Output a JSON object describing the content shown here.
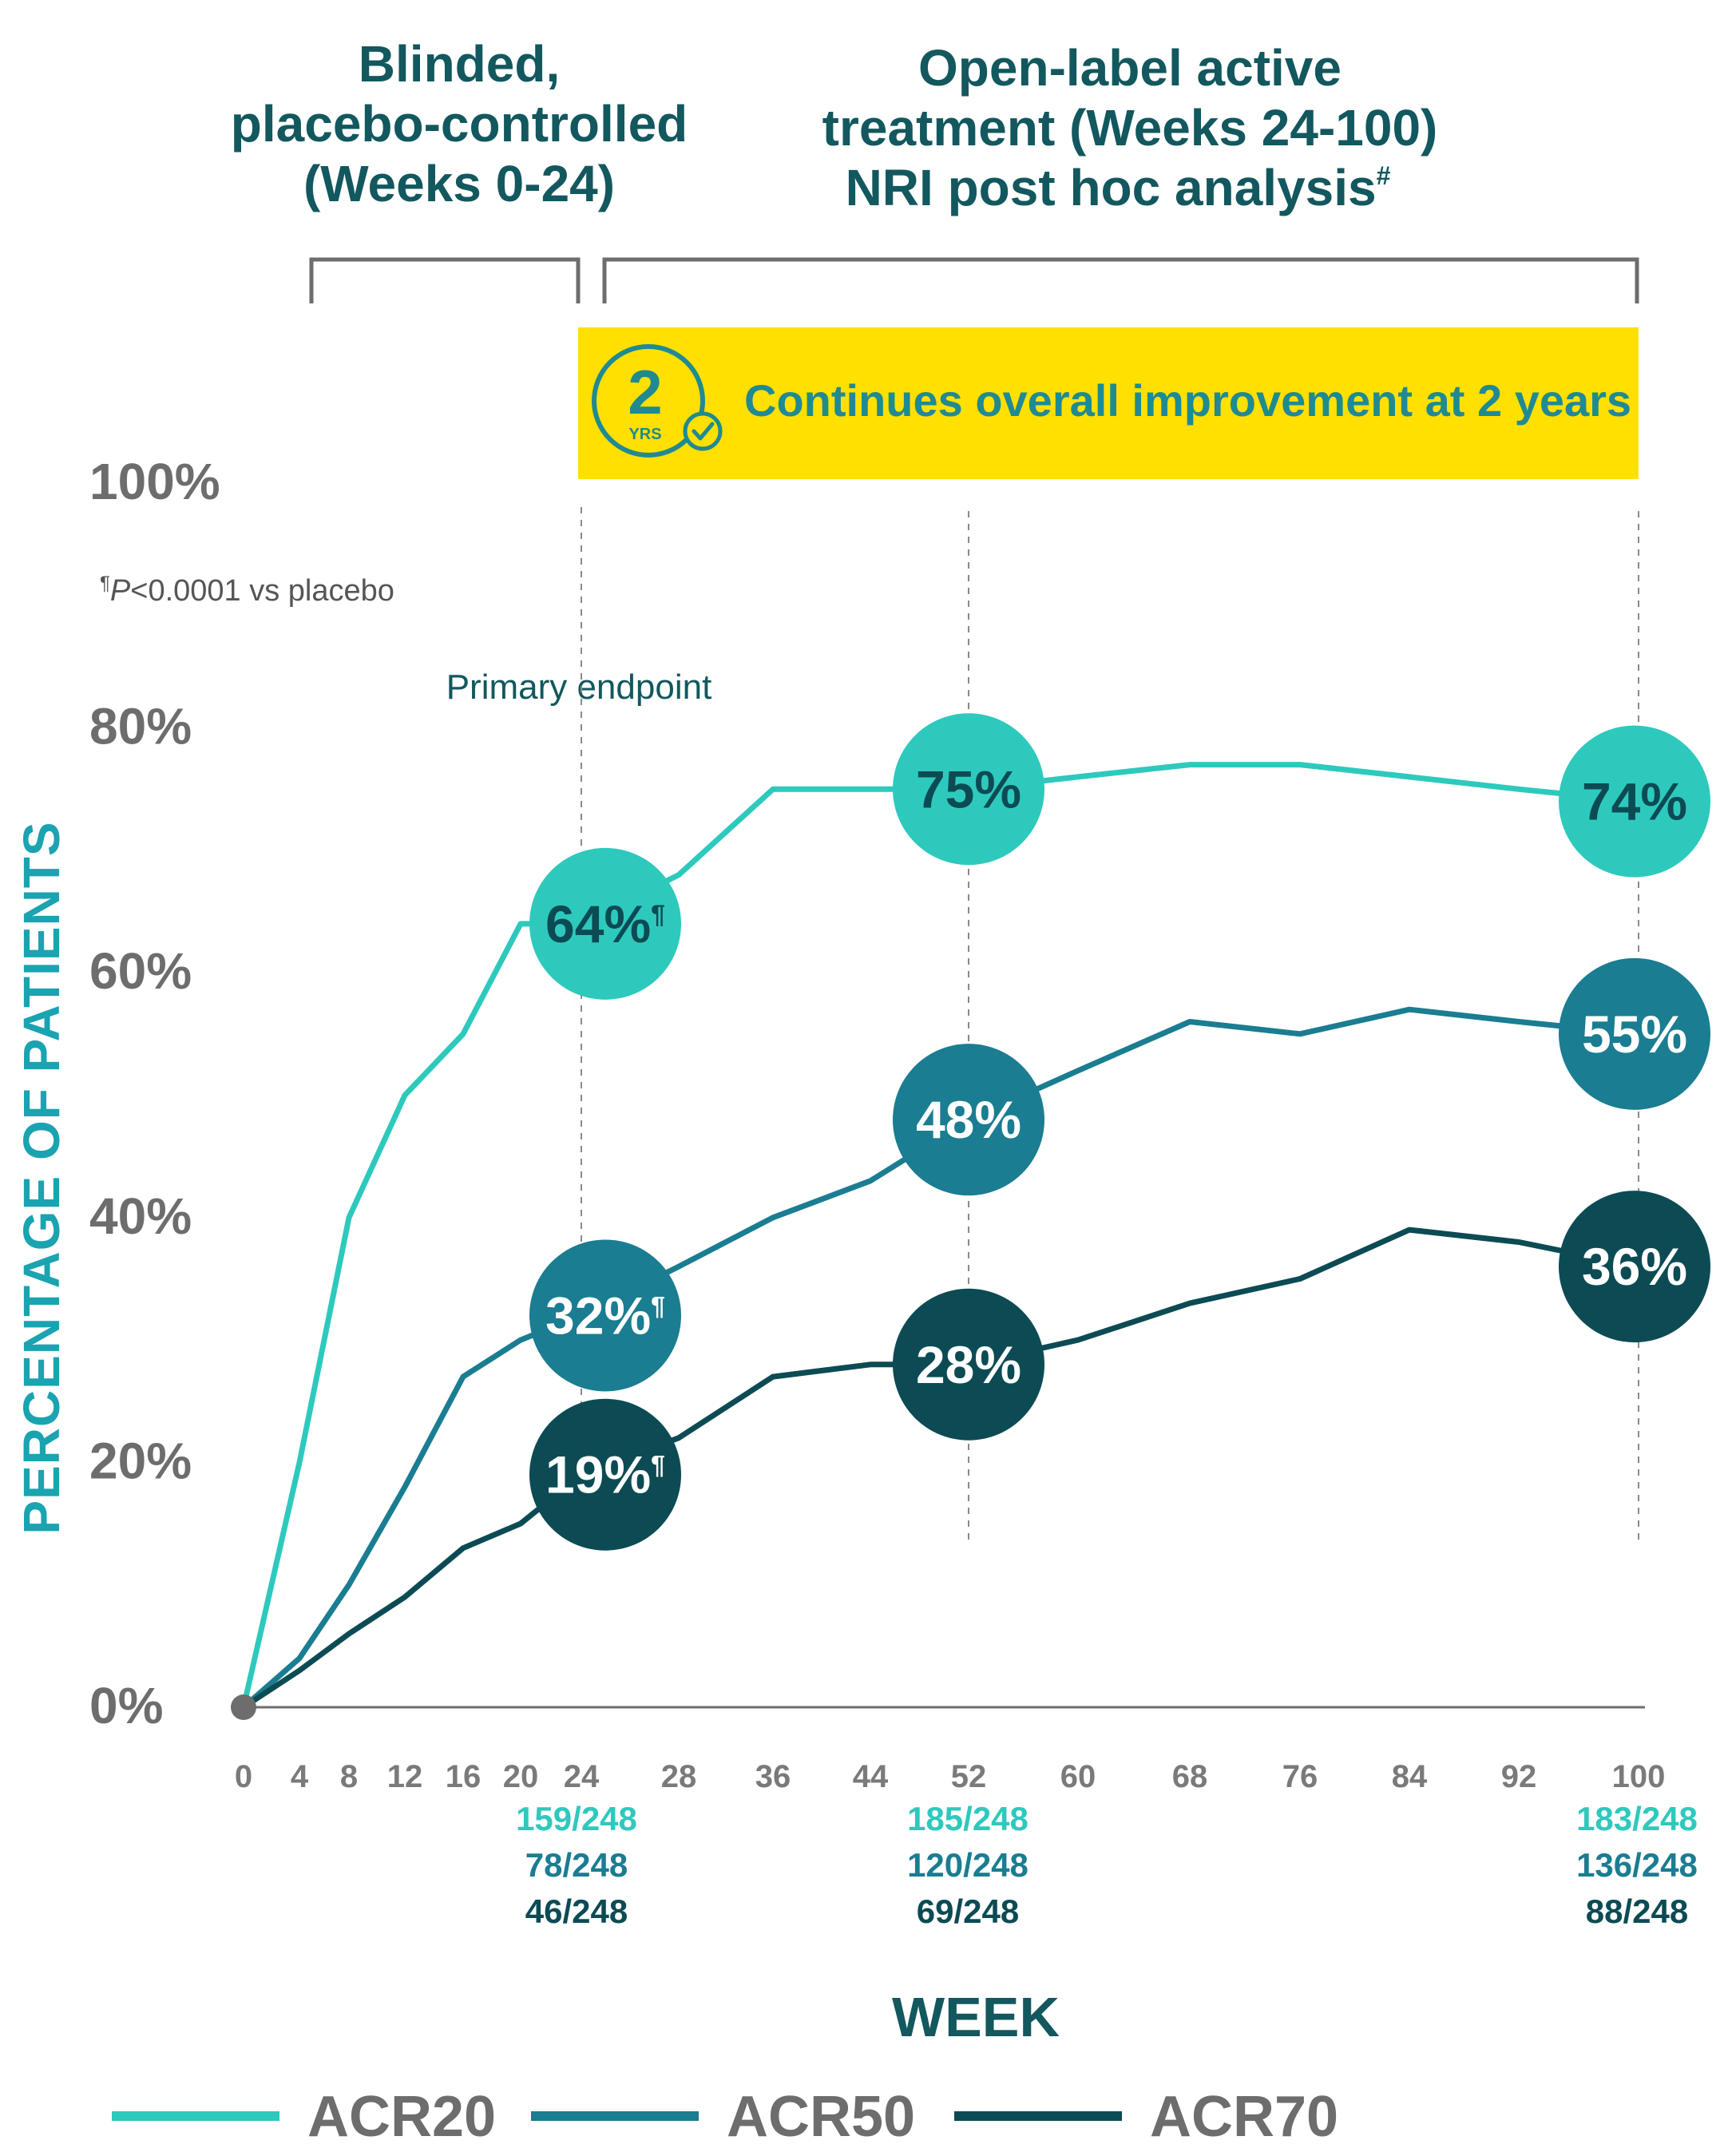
{
  "colors": {
    "acr20": "#2ec9bd",
    "acr50": "#1a7d91",
    "acr70": "#0c4b54",
    "banner": "#ffe000",
    "header": "#12585e",
    "axis_title": "#1aa3b0",
    "tick": "#6d6d6d"
  },
  "header_left": [
    "Blinded,",
    "placebo-controlled",
    "(Weeks 0-24)"
  ],
  "header_right": [
    "Open-label active",
    "treatment (Weeks 24-100)",
    "NRI post hoc analysis"
  ],
  "header_right_sup": "#",
  "banner": {
    "badge_number": "2",
    "badge_unit": "YRS",
    "text": "Continues overall improvement at 2 years"
  },
  "footnote": {
    "mark": "¶",
    "p": "P",
    "rest": "<0.0001 vs placebo"
  },
  "primary_endpoint": "Primary endpoint",
  "chart_data": {
    "type": "line",
    "title": "",
    "xlabel": "WEEK",
    "ylabel": "PERCENTAGE OF PATIENTS",
    "ylim": [
      0,
      100
    ],
    "yticks": [
      0,
      20,
      40,
      60,
      80,
      100
    ],
    "ytick_labels": [
      "0%",
      "20%",
      "40%",
      "60%",
      "80%",
      "100%"
    ],
    "x_ticks": [
      0,
      4,
      8,
      12,
      16,
      20,
      24,
      28,
      36,
      44,
      52,
      60,
      68,
      76,
      84,
      92,
      100
    ],
    "series": [
      {
        "name": "ACR20",
        "color": "#2ec9bd",
        "x": [
          0,
          4,
          8,
          12,
          16,
          20,
          24,
          28,
          36,
          44,
          52,
          60,
          68,
          76,
          84,
          92,
          100
        ],
        "values": [
          0,
          20,
          40,
          50,
          55,
          64,
          64,
          68,
          75,
          75,
          75,
          76,
          77,
          77,
          76,
          75,
          74
        ]
      },
      {
        "name": "ACR50",
        "color": "#1a7d91",
        "x": [
          0,
          4,
          8,
          12,
          16,
          20,
          24,
          28,
          36,
          44,
          52,
          60,
          68,
          76,
          84,
          92,
          100
        ],
        "values": [
          0,
          4,
          10,
          18,
          27,
          30,
          32,
          36,
          40,
          43,
          48,
          52,
          56,
          55,
          57,
          56,
          55
        ]
      },
      {
        "name": "ACR70",
        "color": "#0c4b54",
        "x": [
          0,
          4,
          8,
          12,
          16,
          20,
          24,
          28,
          36,
          44,
          52,
          60,
          68,
          76,
          84,
          92,
          100
        ],
        "values": [
          0,
          3,
          6,
          9,
          13,
          15,
          19,
          22,
          27,
          28,
          28,
          30,
          33,
          35,
          39,
          38,
          36
        ]
      }
    ],
    "point_labels": [
      {
        "series": "ACR20",
        "week": 24,
        "value": 64,
        "label": "64%",
        "sup": "¶"
      },
      {
        "series": "ACR20",
        "week": 52,
        "value": 75,
        "label": "75%",
        "sup": ""
      },
      {
        "series": "ACR20",
        "week": 100,
        "value": 74,
        "label": "74%",
        "sup": ""
      },
      {
        "series": "ACR50",
        "week": 24,
        "value": 32,
        "label": "32%",
        "sup": "¶"
      },
      {
        "series": "ACR50",
        "week": 52,
        "value": 48,
        "label": "48%",
        "sup": ""
      },
      {
        "series": "ACR50",
        "week": 100,
        "value": 55,
        "label": "55%",
        "sup": ""
      },
      {
        "series": "ACR70",
        "week": 24,
        "value": 19,
        "label": "19%",
        "sup": "¶"
      },
      {
        "series": "ACR70",
        "week": 52,
        "value": 28,
        "label": "28%",
        "sup": ""
      },
      {
        "series": "ACR70",
        "week": 100,
        "value": 36,
        "label": "36%",
        "sup": ""
      }
    ],
    "counts": [
      {
        "week": 24,
        "rows": [
          "159/248",
          "78/248",
          "46/248"
        ]
      },
      {
        "week": 52,
        "rows": [
          "185/248",
          "120/248",
          "69/248"
        ]
      },
      {
        "week": 100,
        "rows": [
          "183/248",
          "136/248",
          "88/248"
        ]
      }
    ],
    "legend": [
      "ACR20",
      "ACR50",
      "ACR70"
    ]
  }
}
